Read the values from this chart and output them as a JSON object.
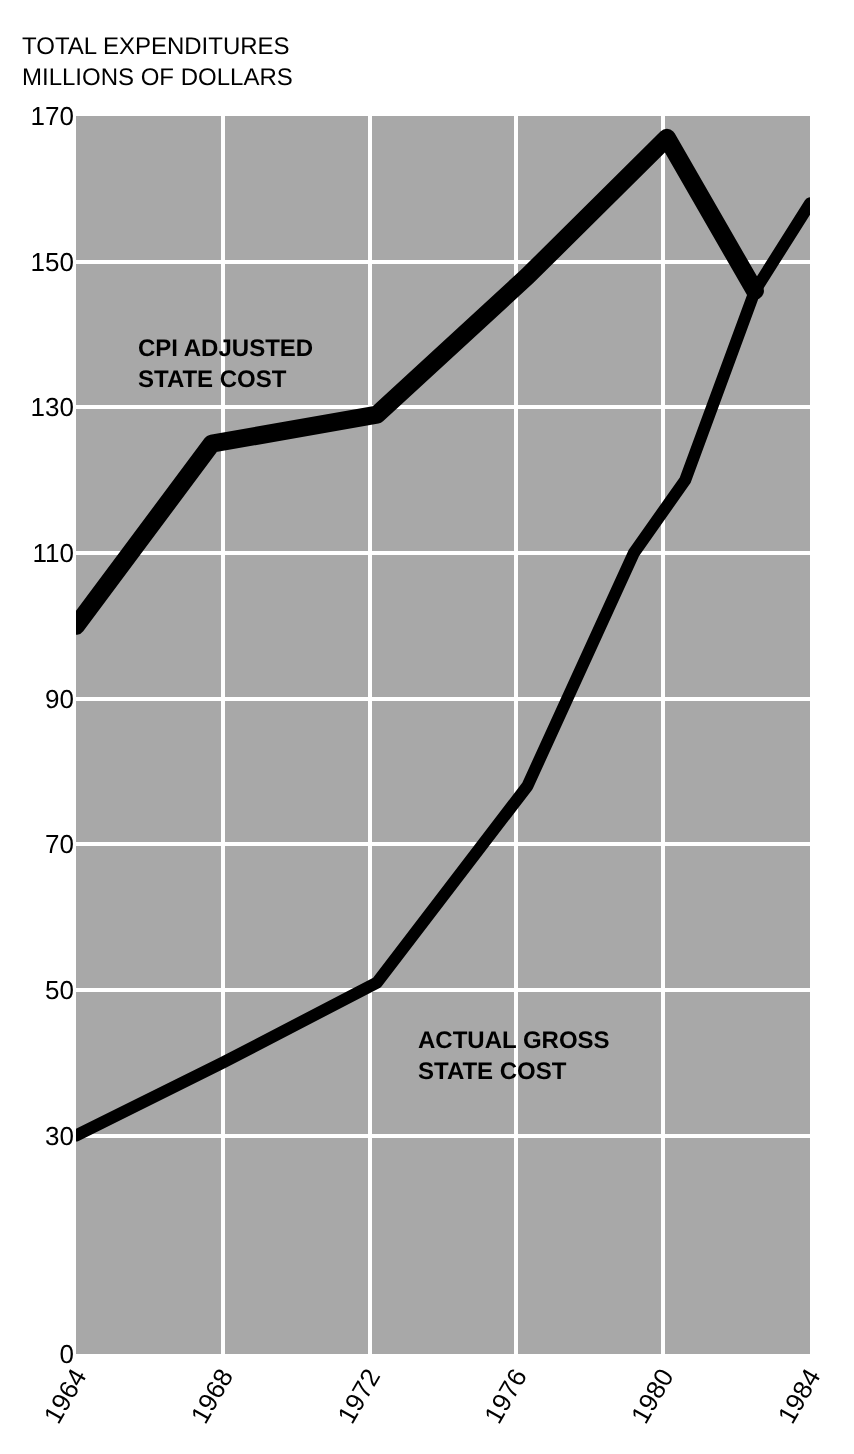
{
  "chart_data": {
    "type": "line",
    "ylabel": "TOTAL EXPENDITURES\nMILLIONS OF DOLLARS",
    "series": [
      {
        "name": "CPI ADJUSTED\nSTATE COST",
        "color": "#000000",
        "x": [
          1964,
          1967.7,
          1972.2,
          1976.3,
          1980.1,
          1982.5
        ],
        "values": [
          100,
          125,
          129,
          148,
          167,
          146
        ]
      },
      {
        "name": "ACTUAL GROSS\nSTATE COST",
        "color": "#000000",
        "x": [
          1964,
          1968,
          1972.2,
          1976.3,
          1979.2,
          1980.6,
          1982.5,
          1984
        ],
        "values": [
          30,
          40,
          51,
          78,
          110,
          120,
          146,
          158
        ]
      }
    ],
    "xlim": [
      1964,
      1984
    ],
    "xticks": [
      1964,
      1968,
      1972,
      1976,
      1980,
      1984
    ],
    "ylim": [
      0,
      170
    ],
    "yticks": [
      0,
      30,
      50,
      70,
      90,
      110,
      130,
      150,
      170
    ],
    "grid": true,
    "legend": false,
    "marker": "none",
    "line_style": "solid"
  }
}
